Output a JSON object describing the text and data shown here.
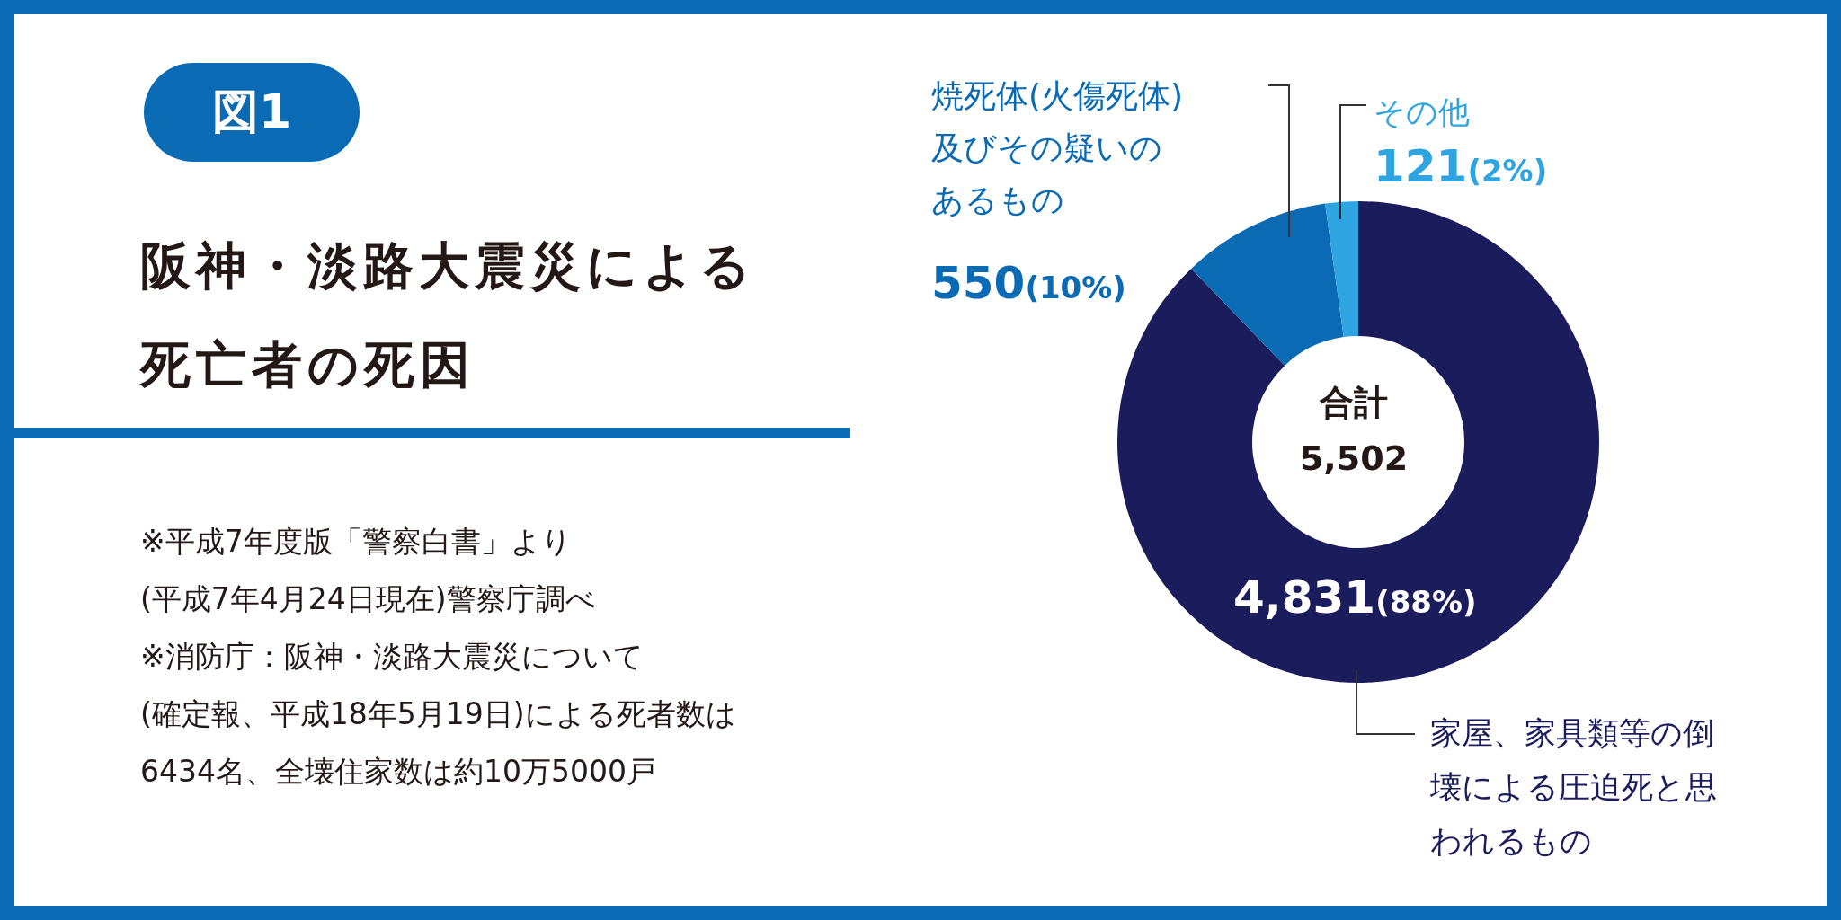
{
  "chart_data": {
    "type": "donut",
    "title": "阪神・淡路大震災による死亡者の死因",
    "categories": [
      "家屋、家具類等の倒壊による圧迫死と思われるもの",
      "焼死体(火傷死体)及びその疑いのあるもの",
      "その他"
    ],
    "values": [
      4831,
      550,
      121
    ],
    "colors": [
      "#1b1c5c",
      "#0a6ab4",
      "#2ea4e0"
    ],
    "value_labels": [
      "4,831(88%)",
      "550(10%)",
      "121(2%)"
    ],
    "legend": false,
    "annotations": [
      "図1",
      "合計",
      "5,502",
      "※平成7年度版「警察白書」より",
      "(平成7年4月24日現在)警察庁調べ",
      "※消防庁：阪神・淡路大震災について",
      "(確定報、平成18年5月19日)による死者数は",
      "6434名、全壊住家数は約10万5000戸"
    ]
  }
}
